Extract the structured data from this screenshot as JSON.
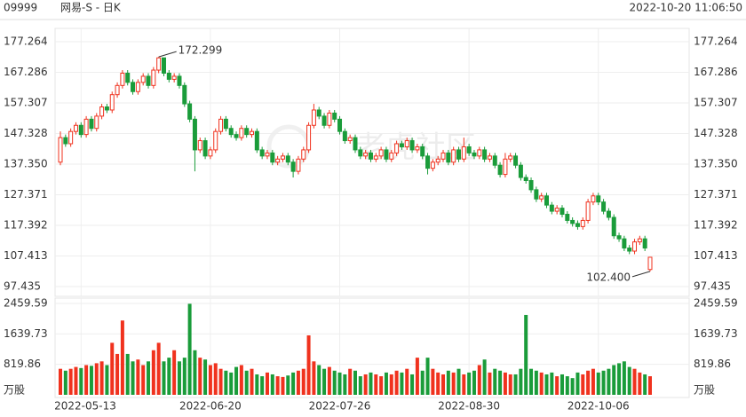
{
  "header": {
    "code": "09999",
    "name": "网易-S - 日K",
    "time": "2022-10-20 11:06:50"
  },
  "chart_data": {
    "type": "candlestick",
    "watermark": "老虎社区",
    "up_color": "#f0321e",
    "down_color": "#1a9c3a",
    "categories": [
      null,
      null,
      null,
      null,
      "2022-05-13",
      null,
      null,
      null,
      null,
      null,
      null,
      null,
      null,
      null,
      null,
      null,
      null,
      null,
      null,
      null,
      null,
      null,
      null,
      null,
      null,
      null,
      null,
      null,
      null,
      "2022-06-20",
      null,
      null,
      null,
      null,
      null,
      null,
      null,
      null,
      null,
      null,
      null,
      null,
      null,
      null,
      null,
      null,
      null,
      null,
      null,
      null,
      null,
      null,
      null,
      null,
      "2022-07-26",
      null,
      null,
      null,
      null,
      null,
      null,
      null,
      null,
      null,
      null,
      null,
      null,
      null,
      null,
      null,
      null,
      null,
      null,
      null,
      null,
      null,
      null,
      null,
      null,
      "2022-08-30",
      null,
      null,
      null,
      null,
      null,
      null,
      null,
      null,
      null,
      null,
      null,
      null,
      null,
      null,
      null,
      null,
      null,
      null,
      null,
      null,
      null,
      null,
      null,
      null,
      "2022-10-06",
      null,
      null,
      null,
      null,
      null,
      null,
      null,
      null,
      null,
      null
    ],
    "open": [
      138,
      146,
      144,
      148,
      150,
      147,
      152,
      149,
      153,
      156,
      155,
      160,
      163,
      167,
      164,
      161,
      164,
      166,
      163,
      168,
      172,
      167,
      165,
      166,
      163,
      157,
      152,
      142,
      145,
      140,
      142,
      148,
      152,
      149,
      147,
      146,
      149,
      147,
      148,
      142,
      140,
      141,
      138,
      139,
      140,
      138,
      135,
      139,
      142,
      150,
      155,
      153,
      150,
      154,
      152,
      148,
      145,
      146,
      142,
      140,
      141,
      139,
      140,
      142,
      139,
      141,
      144,
      143,
      145,
      142,
      143,
      140,
      136,
      138,
      139,
      141,
      138,
      142,
      139,
      143,
      141,
      140,
      142,
      139,
      140,
      137,
      134,
      139,
      140,
      137,
      133,
      132,
      129,
      126,
      127,
      124,
      122,
      123,
      121,
      119,
      118,
      117,
      119,
      125,
      127,
      125,
      122,
      120,
      114,
      113,
      110,
      109,
      112,
      113,
      103
    ],
    "high": [
      148,
      147,
      149,
      151,
      151,
      153,
      153,
      154,
      157,
      157,
      161,
      164,
      168,
      168,
      165,
      165,
      167,
      167,
      169,
      172.299,
      172,
      168,
      167,
      167,
      164,
      158,
      153,
      146,
      146,
      143,
      149,
      153,
      153,
      150,
      148,
      150,
      150,
      149,
      149,
      143,
      142,
      142,
      140,
      141,
      141,
      139,
      140,
      143,
      151,
      157,
      156,
      154,
      155,
      155,
      153,
      149,
      147,
      147,
      143,
      142,
      142,
      141,
      143,
      143,
      142,
      145,
      145,
      146,
      146,
      144,
      144,
      141,
      139,
      140,
      142,
      142,
      143,
      143,
      146,
      144,
      142,
      143,
      143,
      141,
      141,
      138,
      141,
      141,
      141,
      138,
      134,
      133,
      130,
      128,
      128,
      125,
      124,
      124,
      122,
      120,
      119,
      120,
      126,
      128,
      128,
      126,
      123,
      121,
      115,
      114,
      111,
      113,
      114,
      114,
      107
    ],
    "low": [
      137,
      143,
      143,
      147,
      146,
      146,
      148,
      148,
      152,
      154,
      154,
      159,
      162,
      163,
      160,
      160,
      163,
      162,
      162,
      167,
      166,
      164,
      164,
      162,
      156,
      151,
      135,
      141,
      139,
      139,
      141,
      147,
      148,
      146,
      145,
      145,
      146,
      146,
      141,
      139,
      139,
      137,
      137,
      138,
      137,
      133,
      134,
      138,
      141,
      149,
      152,
      149,
      149,
      151,
      147,
      144,
      144,
      141,
      139,
      139,
      138,
      138,
      139,
      138,
      138,
      140,
      142,
      142,
      141,
      141,
      139,
      134,
      135,
      137,
      138,
      137,
      137,
      138,
      138,
      140,
      139,
      139,
      138,
      138,
      136,
      133,
      133,
      138,
      136,
      132,
      131,
      128,
      125,
      125,
      123,
      121,
      121,
      120,
      118,
      117,
      116,
      116,
      118,
      124,
      124,
      121,
      119,
      113,
      112,
      109,
      108,
      108,
      111,
      109,
      102.4
    ],
    "close": [
      146,
      144,
      148,
      150,
      147,
      152,
      149,
      153,
      156,
      155,
      160,
      163,
      167,
      164,
      161,
      164,
      166,
      163,
      168,
      172,
      167,
      165,
      166,
      163,
      157,
      152,
      142,
      145,
      140,
      142,
      148,
      152,
      149,
      147,
      146,
      149,
      147,
      148,
      142,
      140,
      141,
      138,
      139,
      140,
      138,
      135,
      139,
      142,
      150,
      155,
      153,
      150,
      154,
      152,
      148,
      145,
      146,
      142,
      140,
      141,
      139,
      140,
      142,
      139,
      141,
      144,
      143,
      145,
      142,
      143,
      140,
      136,
      138,
      139,
      141,
      138,
      142,
      139,
      143,
      141,
      140,
      142,
      139,
      140,
      137,
      134,
      139,
      140,
      137,
      133,
      132,
      129,
      126,
      127,
      124,
      122,
      123,
      121,
      119,
      118,
      117,
      119,
      125,
      127,
      125,
      122,
      120,
      114,
      113,
      110,
      109,
      112,
      113,
      110,
      107
    ],
    "annotations": [
      "172.299",
      "102.400"
    ],
    "ylim": [
      97.435,
      177.264
    ],
    "yticks": [
      177.264,
      167.286,
      157.307,
      147.328,
      {
        "value": 137.35,
        "label": "137.350"
      },
      127.371,
      117.392,
      107.413,
      97.435
    ],
    "volume": [
      700,
      650,
      700,
      750,
      720,
      800,
      780,
      850,
      900,
      800,
      1400,
      1100,
      2000,
      1100,
      900,
      950,
      800,
      900,
      1200,
      1400,
      900,
      1000,
      1200,
      900,
      1000,
      2450,
      1200,
      1000,
      950,
      800,
      850,
      700,
      650,
      600,
      750,
      800,
      650,
      700,
      550,
      500,
      600,
      550,
      500,
      480,
      520,
      600,
      650,
      700,
      1600,
      900,
      800,
      700,
      750,
      650,
      600,
      550,
      700,
      650,
      500,
      550,
      600,
      550,
      500,
      600,
      550,
      650,
      600,
      700,
      550,
      1000,
      650,
      1000,
      700,
      600,
      550,
      650,
      600,
      700,
      550,
      600,
      650,
      800,
      950,
      600,
      700,
      650,
      600,
      550,
      550,
      700,
      2150,
      700,
      650,
      600,
      550,
      600,
      500,
      550,
      500,
      450,
      600,
      550,
      650,
      700,
      600,
      650,
      700,
      800,
      850,
      900,
      750,
      700,
      600,
      550,
      500
    ],
    "volume_unit": "万股",
    "vlim": [
      0,
      2459.59
    ],
    "vticks": [
      2459.59,
      1639.73,
      819.86
    ],
    "grid": true
  }
}
